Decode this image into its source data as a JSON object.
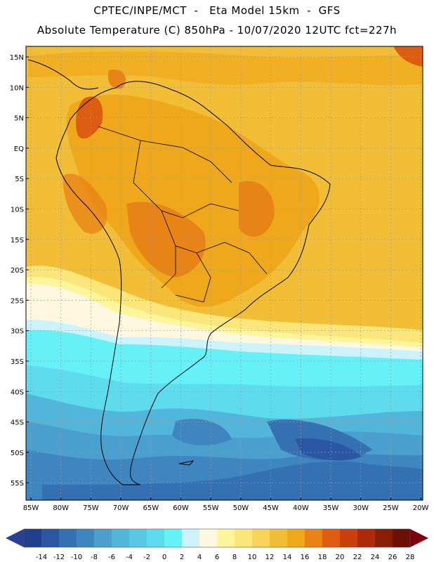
{
  "header": {
    "line1": "CPTEC/INPE/MCT  -   Eta Model 15km  -  GFS",
    "line2": "Absolute Temperature (C) 850hPa - 10/07/2020 12UTC fct=227h"
  },
  "axes": {
    "lat_labels": [
      "15N",
      "10N",
      "5N",
      "EQ",
      "5S",
      "10S",
      "15S",
      "20S",
      "25S",
      "30S",
      "35S",
      "40S",
      "45S",
      "50S",
      "55S"
    ],
    "lon_labels": [
      "85W",
      "80W",
      "75W",
      "70W",
      "65W",
      "60W",
      "55W",
      "50W",
      "45W",
      "40W",
      "35W",
      "30W",
      "25W",
      "20W"
    ]
  },
  "colorbar": {
    "ticks": [
      "-14",
      "-12",
      "-10",
      "-8",
      "-6",
      "-4",
      "-2",
      "0",
      "2",
      "4",
      "6",
      "8",
      "10",
      "12",
      "14",
      "16",
      "18",
      "20",
      "22",
      "24",
      "26",
      "28"
    ],
    "colors": [
      "#1f3f8f",
      "#2a56a3",
      "#3570b3",
      "#3f86c0",
      "#4a9fcf",
      "#52b5da",
      "#58c8e4",
      "#5fdbee",
      "#66f0f7",
      "#ccf3fb",
      "#fff8e0",
      "#fdf59b",
      "#fbe67b",
      "#f7d35a",
      "#f3be37",
      "#efa81c",
      "#e88316",
      "#dc5c11",
      "#c9400c",
      "#ae2a08",
      "#8a1d06",
      "#6b1002"
    ],
    "left_arrow_color": "#2a3f96",
    "right_arrow_color": "#7a0010"
  },
  "map_colors": {
    "background": "#f3be37",
    "warm_land": "#efa81c",
    "hot_spots": "#e88316",
    "very_hot": "#dc5c11",
    "cool_bands": [
      "#fbe67b",
      "#fdf59b",
      "#fff8e0",
      "#ccf3fb",
      "#66f0f7",
      "#5fdbee",
      "#52b5da",
      "#4a9fcf",
      "#3f86c0",
      "#3570b3",
      "#2a56a3"
    ]
  }
}
